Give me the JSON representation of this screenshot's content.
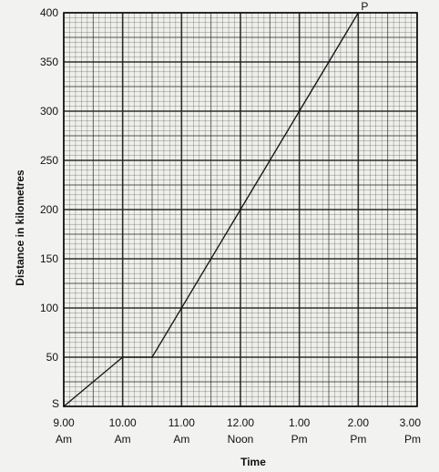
{
  "chart_data": {
    "type": "line",
    "title": "",
    "xlabel": "Time",
    "ylabel": "Distance in kilometres",
    "x_ticks": [
      {
        "line1": "9.00",
        "line2": "Am"
      },
      {
        "line1": "10.00",
        "line2": "Am"
      },
      {
        "line1": "11.00",
        "line2": "Am"
      },
      {
        "line1": "12.00",
        "line2": "Noon"
      },
      {
        "line1": "1.00",
        "line2": "Pm"
      },
      {
        "line1": "2.00",
        "line2": "Pm"
      },
      {
        "line1": "3.00",
        "line2": "Pm"
      }
    ],
    "y_ticks": [
      "400",
      "350",
      "300",
      "250",
      "200",
      "150",
      "100",
      "50"
    ],
    "ylim": [
      0,
      400
    ],
    "grid": true,
    "series": [
      {
        "x": [
          "9.00 Am",
          "10.00 Am",
          "10.30 Am",
          "12.00 Noon",
          "1.00 Pm",
          "2.00 Pm"
        ],
        "y": [
          0,
          50,
          50,
          200,
          300,
          400
        ]
      }
    ],
    "annotations": [
      {
        "text": "S",
        "x": "9.00 Am",
        "y": 0
      },
      {
        "text": "P",
        "x": "2.00 Pm",
        "y": 400
      }
    ]
  }
}
